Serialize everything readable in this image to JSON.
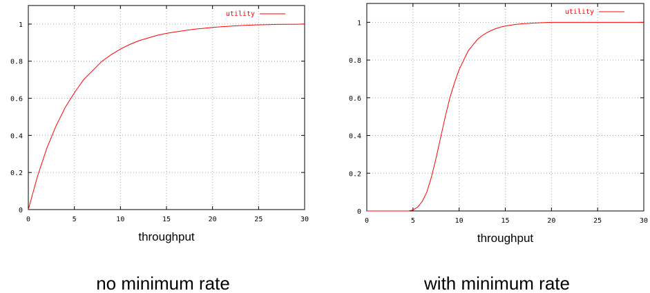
{
  "chart_data": [
    {
      "type": "line",
      "caption": "no minimum rate",
      "xlabel": "throughput",
      "ylabel": "",
      "xlim": [
        0,
        30
      ],
      "ylim": [
        0,
        1.1
      ],
      "xticks": [
        0,
        5,
        10,
        15,
        20,
        25,
        30
      ],
      "yticks": [
        0,
        0.2,
        0.4,
        0.6,
        0.8,
        1
      ],
      "grid": true,
      "legend_position": "top-right",
      "series": [
        {
          "name": "utility",
          "color": "#ff0000",
          "x": [
            0,
            1,
            2,
            3,
            4,
            5,
            6,
            7,
            8,
            9,
            10,
            11,
            12,
            13,
            14,
            15,
            16,
            17,
            18,
            19,
            20,
            21,
            22,
            23,
            24,
            25,
            26,
            27,
            28,
            29,
            30
          ],
          "y": [
            0,
            0.18,
            0.33,
            0.45,
            0.55,
            0.63,
            0.7,
            0.75,
            0.8,
            0.835,
            0.865,
            0.89,
            0.91,
            0.925,
            0.94,
            0.95,
            0.958,
            0.965,
            0.972,
            0.977,
            0.982,
            0.986,
            0.989,
            0.992,
            0.994,
            0.996,
            0.997,
            0.998,
            0.999,
            0.999,
            1.0
          ]
        }
      ]
    },
    {
      "type": "line",
      "caption": "with minimum rate",
      "xlabel": "throughput",
      "ylabel": "",
      "xlim": [
        0,
        30
      ],
      "ylim": [
        0,
        1.1
      ],
      "xticks": [
        0,
        5,
        10,
        15,
        20,
        25,
        30
      ],
      "yticks": [
        0,
        0.2,
        0.4,
        0.6,
        0.8,
        1
      ],
      "grid": true,
      "legend_position": "top-right",
      "series": [
        {
          "name": "utility",
          "color": "#ff0000",
          "x": [
            0,
            4.5,
            5,
            5.5,
            6,
            6.5,
            7,
            7.5,
            8,
            8.5,
            9,
            9.5,
            10,
            10.5,
            11,
            11.5,
            12,
            12.5,
            13,
            13.5,
            14,
            14.5,
            15,
            16,
            17,
            18,
            19,
            20,
            25,
            30
          ],
          "y": [
            0,
            0,
            0.005,
            0.02,
            0.05,
            0.1,
            0.18,
            0.28,
            0.39,
            0.5,
            0.6,
            0.68,
            0.75,
            0.8,
            0.85,
            0.88,
            0.91,
            0.93,
            0.945,
            0.957,
            0.967,
            0.975,
            0.98,
            0.988,
            0.993,
            0.996,
            0.998,
            1.0,
            1.0,
            1.0
          ]
        }
      ]
    }
  ]
}
